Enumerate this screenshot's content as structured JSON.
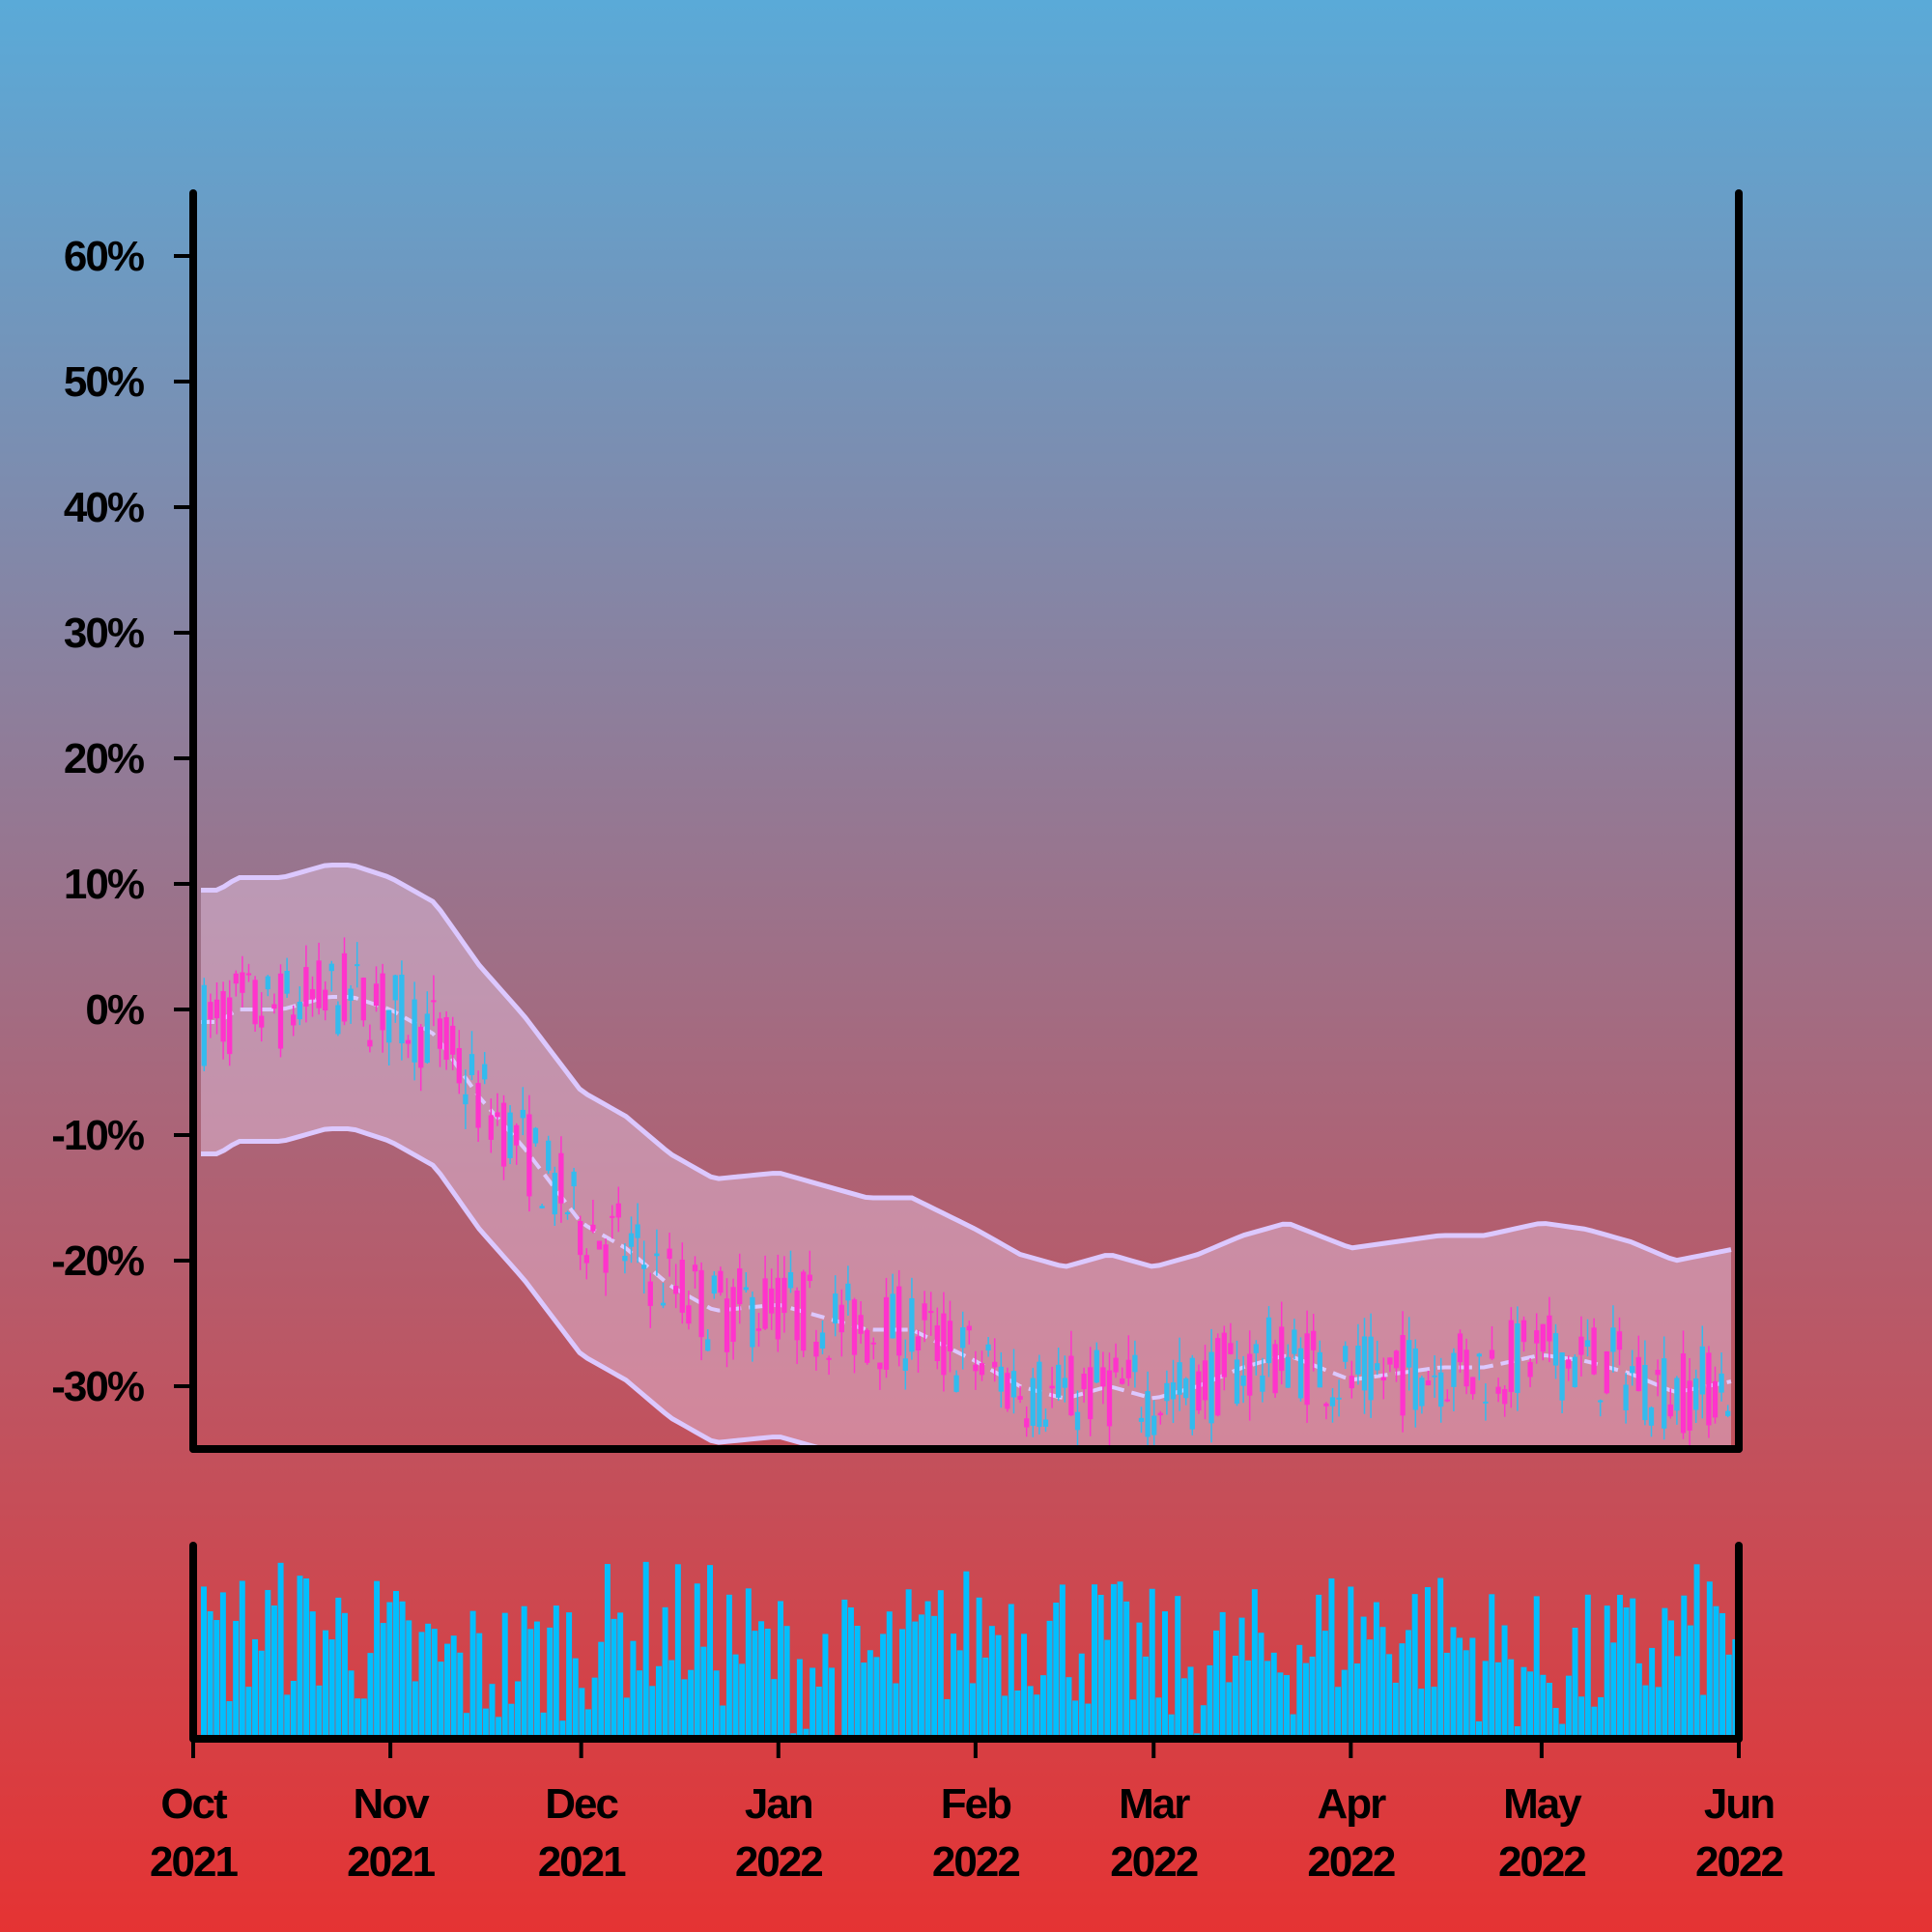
{
  "chart_data": {
    "type": "candlestick-with-bands-and-volume",
    "y_axis": {
      "ticks": [
        {
          "value": 60,
          "label": "60%"
        },
        {
          "value": 50,
          "label": "50%"
        },
        {
          "value": 40,
          "label": "40%"
        },
        {
          "value": 30,
          "label": "30%"
        },
        {
          "value": 20,
          "label": "20%"
        },
        {
          "value": 10,
          "label": "10%"
        },
        {
          "value": 0,
          "label": "0%"
        },
        {
          "value": -10,
          "label": "-10%"
        },
        {
          "value": -20,
          "label": "-20%"
        },
        {
          "value": -30,
          "label": "-30%"
        }
      ],
      "ylim": [
        -35,
        65
      ]
    },
    "x_axis": {
      "start": "2021-10-01",
      "end": "2022-06-01",
      "ticks": [
        {
          "date": "2021-10-01",
          "label": [
            "Oct",
            "2021"
          ]
        },
        {
          "date": "2021-11-01",
          "label": [
            "Nov",
            "2021"
          ]
        },
        {
          "date": "2021-12-01",
          "label": [
            "Dec",
            "2021"
          ]
        },
        {
          "date": "2022-01-01",
          "label": [
            "Jan",
            "2022"
          ]
        },
        {
          "date": "2022-02-01",
          "label": [
            "Feb",
            "2022"
          ]
        },
        {
          "date": "2022-03-01",
          "label": [
            "Mar",
            "2022"
          ]
        },
        {
          "date": "2022-04-01",
          "label": [
            "Apr",
            "2022"
          ]
        },
        {
          "date": "2022-05-01",
          "label": [
            "May",
            "2022"
          ]
        },
        {
          "date": "2022-06-01",
          "label": [
            "Jun",
            "2022"
          ]
        }
      ]
    },
    "moving_average": {
      "style": "dashed",
      "points": [
        [
          "2021-10-01",
          -1
        ],
        [
          "2021-10-05",
          -1
        ],
        [
          "2021-10-08",
          0
        ],
        [
          "2021-10-15",
          0
        ],
        [
          "2021-10-22",
          1
        ],
        [
          "2021-10-26",
          1
        ],
        [
          "2021-11-01",
          0
        ],
        [
          "2021-11-08",
          -2
        ],
        [
          "2021-11-15",
          -7
        ],
        [
          "2021-11-22",
          -11
        ],
        [
          "2021-12-01",
          -17
        ],
        [
          "2021-12-08",
          -19
        ],
        [
          "2021-12-15",
          -22
        ],
        [
          "2021-12-22",
          -24
        ],
        [
          "2022-01-01",
          -23.5
        ],
        [
          "2022-01-08",
          -24.5
        ],
        [
          "2022-01-15",
          -25.5
        ],
        [
          "2022-01-22",
          -25.5
        ],
        [
          "2022-02-01",
          -28
        ],
        [
          "2022-02-08",
          -30
        ],
        [
          "2022-02-15",
          -31
        ],
        [
          "2022-02-22",
          -30
        ],
        [
          "2022-03-01",
          -31
        ],
        [
          "2022-03-08",
          -30
        ],
        [
          "2022-03-15",
          -28.5
        ],
        [
          "2022-03-22",
          -27.5
        ],
        [
          "2022-04-01",
          -29.5
        ],
        [
          "2022-04-08",
          -29
        ],
        [
          "2022-04-15",
          -28.5
        ],
        [
          "2022-04-22",
          -28.5
        ],
        [
          "2022-05-01",
          -27.5
        ],
        [
          "2022-05-08",
          -28
        ],
        [
          "2022-05-15",
          -29
        ],
        [
          "2022-05-22",
          -30.5
        ],
        [
          "2022-06-01",
          -29.5
        ]
      ]
    },
    "band": {
      "offset": 10.5
    },
    "candles": {
      "count": 240,
      "up_color": "#33bbee",
      "down_color": "#ff33cc"
    },
    "volume": {
      "count": 240,
      "color": "#00bfff"
    },
    "colors": {
      "background_top": "#5aaad8",
      "background_bottom": "#e53333",
      "band_line": "#dcc8ff",
      "band_fill": "#e6c8e6"
    }
  }
}
